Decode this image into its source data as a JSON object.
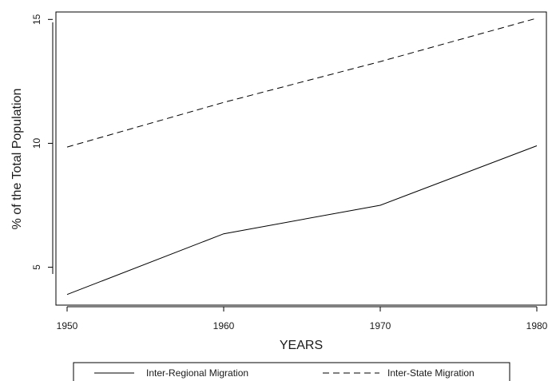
{
  "chart_data": {
    "type": "line",
    "title": "",
    "xlabel": "YEARS",
    "ylabel": "% of the Total Population",
    "x": [
      1950,
      1960,
      1970,
      1980
    ],
    "xticks": [
      "1950",
      "1960",
      "1970",
      "1980"
    ],
    "yticks": [
      "5",
      "10",
      "15"
    ],
    "xlim": [
      1950,
      1980
    ],
    "ylim": [
      3.6,
      15.3
    ],
    "grid": false,
    "legend_position": "bottom",
    "series": [
      {
        "name": "Inter-Regional Migration",
        "values": [
          3.9,
          6.35,
          7.5,
          9.9
        ],
        "style": "solid",
        "color": "#000000"
      },
      {
        "name": "Inter-State Migration",
        "values": [
          9.85,
          11.65,
          13.3,
          15.05
        ],
        "style": "dashed",
        "color": "#000000"
      }
    ]
  }
}
